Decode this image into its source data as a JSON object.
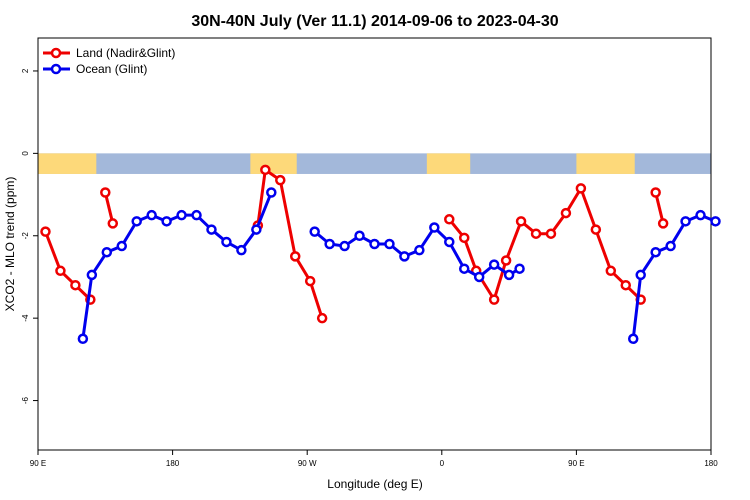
{
  "chart_data": {
    "type": "line",
    "title": "30N-40N July (Ver 11.1)   2014-09-06 to 2023-04-30",
    "xlabel": "Longitude (deg E)",
    "ylabel": "XCO2 - MLO trend (ppm)",
    "xlim": [
      90,
      540
    ],
    "ylim": [
      -7.2,
      2.8
    ],
    "x_ticks": [
      {
        "value": 90,
        "label": "90 E"
      },
      {
        "value": 180,
        "label": "180"
      },
      {
        "value": 270,
        "label": "90 W"
      },
      {
        "value": 360,
        "label": "0"
      },
      {
        "value": 450,
        "label": "90 E"
      },
      {
        "value": 540,
        "label": "180"
      }
    ],
    "y_ticks": [
      {
        "value": 2,
        "label": "2"
      },
      {
        "value": 0,
        "label": "0"
      },
      {
        "value": -2,
        "label": "-2"
      },
      {
        "value": -4,
        "label": "-4"
      },
      {
        "value": -6,
        "label": "-6"
      }
    ],
    "grid": false,
    "legend_position": "top-left",
    "map_strip": {
      "y_top": 0,
      "y_bottom": -0.5,
      "ocean_color": "#a3b8da",
      "land_color": "#fdd97a",
      "land_spans": [
        [
          90,
          129
        ],
        [
          232,
          263
        ],
        [
          350,
          379
        ],
        [
          450,
          489
        ],
        [
          545,
          540
        ]
      ]
    },
    "series": [
      {
        "name": "Land (Nadir&Glint)",
        "color": "#ee0000",
        "segments": [
          [
            [
              95,
              -1.9
            ],
            [
              105,
              -2.85
            ],
            [
              115,
              -3.2
            ],
            [
              125,
              -3.55
            ]
          ],
          [
            [
              135,
              -0.95
            ],
            [
              140,
              -1.7
            ]
          ],
          [
            [
              237,
              -1.75
            ],
            [
              242,
              -0.4
            ],
            [
              252,
              -0.65
            ],
            [
              262,
              -2.5
            ],
            [
              272,
              -3.1
            ],
            [
              280,
              -4.0
            ]
          ],
          [
            [
              365,
              -1.6
            ],
            [
              375,
              -2.05
            ],
            [
              383,
              -2.85
            ],
            [
              395,
              -3.55
            ],
            [
              403,
              -2.6
            ],
            [
              413,
              -1.65
            ],
            [
              423,
              -1.95
            ],
            [
              433,
              -1.95
            ],
            [
              443,
              -1.45
            ],
            [
              453,
              -0.85
            ],
            [
              463,
              -1.85
            ],
            [
              473,
              -2.85
            ],
            [
              483,
              -3.2
            ],
            [
              493,
              -3.55
            ]
          ],
          [
            [
              503,
              -0.95
            ],
            [
              508,
              -1.7
            ]
          ]
        ]
      },
      {
        "name": "Ocean (Glint)",
        "color": "#0000ee",
        "segments": [
          [
            [
              120,
              -4.5
            ],
            [
              126,
              -2.95
            ],
            [
              136,
              -2.4
            ],
            [
              146,
              -2.25
            ],
            [
              156,
              -1.65
            ],
            [
              166,
              -1.5
            ],
            [
              176,
              -1.65
            ],
            [
              186,
              -1.5
            ],
            [
              196,
              -1.5
            ],
            [
              206,
              -1.85
            ],
            [
              216,
              -2.15
            ],
            [
              226,
              -2.35
            ],
            [
              236,
              -1.85
            ],
            [
              246,
              -0.95
            ]
          ],
          [
            [
              275,
              -1.9
            ],
            [
              285,
              -2.2
            ],
            [
              295,
              -2.25
            ],
            [
              305,
              -2.0
            ],
            [
              315,
              -2.2
            ],
            [
              325,
              -2.2
            ],
            [
              335,
              -2.5
            ],
            [
              345,
              -2.35
            ],
            [
              355,
              -1.8
            ],
            [
              365,
              -2.15
            ],
            [
              375,
              -2.8
            ],
            [
              385,
              -3.0
            ],
            [
              395,
              -2.7
            ],
            [
              405,
              -2.95
            ],
            [
              412,
              -2.8
            ]
          ],
          [
            [
              488,
              -4.5
            ],
            [
              493,
              -2.95
            ],
            [
              503,
              -2.4
            ],
            [
              513,
              -2.25
            ],
            [
              523,
              -1.65
            ],
            [
              533,
              -1.5
            ],
            [
              543,
              -1.65
            ]
          ]
        ]
      }
    ]
  }
}
